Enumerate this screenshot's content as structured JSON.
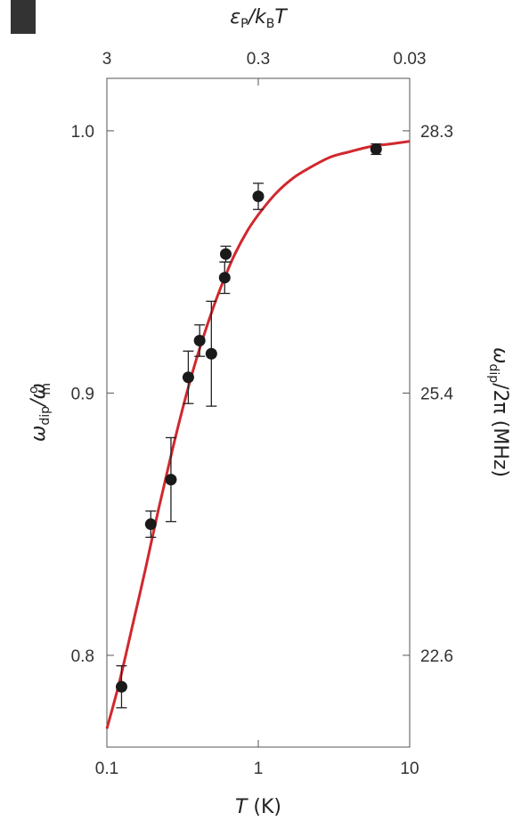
{
  "chart_data": {
    "type": "scatter",
    "x_scale": "log",
    "xlim": [
      0.1,
      10
    ],
    "ylim": [
      0.765,
      1.02
    ],
    "grid": false,
    "x_ticks": [
      {
        "value": 0.1,
        "label": "0.1"
      },
      {
        "value": 1,
        "label": "1"
      },
      {
        "value": 10,
        "label": "10"
      }
    ],
    "y_ticks": [
      {
        "value": 0.8,
        "label": "0.8"
      },
      {
        "value": 0.9,
        "label": "0.9"
      },
      {
        "value": 1.0,
        "label": "1.0"
      }
    ],
    "top_ticks": [
      {
        "value": 0.1,
        "label": "3"
      },
      {
        "value": 1,
        "label": "0.3"
      },
      {
        "value": 10,
        "label": "0.03"
      }
    ],
    "right_ticks": [
      {
        "value": 0.8,
        "label": "22.6"
      },
      {
        "value": 0.9,
        "label": "25.4"
      },
      {
        "value": 1.0,
        "label": "28.3"
      }
    ],
    "xlabel": {
      "text": "T",
      "unit": " (K)"
    },
    "ylabel": {
      "base": "ω",
      "sub": "dip",
      "mid": "/ω",
      "sup": "o",
      "sub2": "m"
    },
    "top_label": {
      "base": "ε",
      "sub": "P",
      "mid": "/k",
      "sub2": "B",
      "end": "T"
    },
    "right_label": {
      "base": "ω",
      "sub": "dip",
      "end": "/2π (MHz)"
    },
    "points_color": "#1a1a1a",
    "points": [
      {
        "x": 0.125,
        "y": 0.788,
        "err": 0.008
      },
      {
        "x": 0.195,
        "y": 0.85,
        "err": 0.005
      },
      {
        "x": 0.265,
        "y": 0.867,
        "err": 0.016
      },
      {
        "x": 0.345,
        "y": 0.906,
        "err": 0.01
      },
      {
        "x": 0.41,
        "y": 0.92,
        "err": 0.006
      },
      {
        "x": 0.49,
        "y": 0.915,
        "err": 0.02
      },
      {
        "x": 0.6,
        "y": 0.944,
        "err": 0.006
      },
      {
        "x": 0.61,
        "y": 0.953,
        "err": 0.003
      },
      {
        "x": 1.0,
        "y": 0.975,
        "err": 0.005
      },
      {
        "x": 6.0,
        "y": 0.993,
        "err": 0.002
      }
    ],
    "fit": {
      "color": "#d0282e",
      "name": "",
      "x": [
        0.1,
        0.12,
        0.15,
        0.18,
        0.22,
        0.27,
        0.33,
        0.4,
        0.5,
        0.6,
        0.7,
        0.85,
        1.0,
        1.3,
        1.7,
        2.2,
        3.0,
        4.0,
        5.5,
        7.5,
        10.0
      ],
      "y": [
        0.772,
        0.789,
        0.813,
        0.833,
        0.856,
        0.878,
        0.898,
        0.915,
        0.932,
        0.944,
        0.953,
        0.962,
        0.968,
        0.976,
        0.982,
        0.986,
        0.99,
        0.992,
        0.994,
        0.995,
        0.996
      ]
    }
  }
}
